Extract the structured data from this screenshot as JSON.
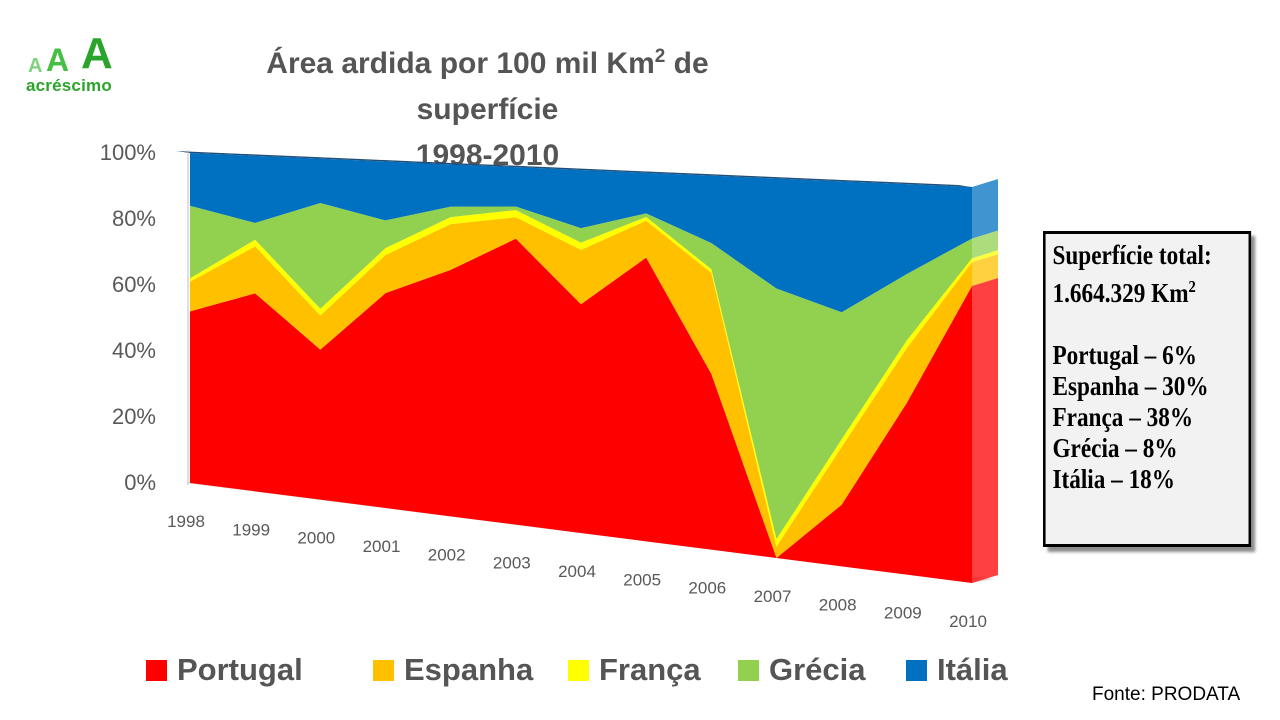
{
  "logo": {
    "letter": "A",
    "wordmark": "acréscimo"
  },
  "title": {
    "line1_prefix": "Área ardida por 100 mil Km",
    "line1_superscript": "2",
    "line1_suffix": " de superfície",
    "line2": "1998-2010"
  },
  "chart_data": {
    "type": "area",
    "stacked": "percent",
    "title": "Área ardida por 100 mil Km2 de superfície 1998-2010",
    "categories": [
      "1998",
      "1999",
      "2000",
      "2001",
      "2002",
      "2003",
      "2004",
      "2005",
      "2006",
      "2007",
      "2008",
      "2009",
      "2010"
    ],
    "y_ticks": [
      "0%",
      "20%",
      "40%",
      "60%",
      "80%",
      "100%"
    ],
    "ylim": [
      0,
      100
    ],
    "series": [
      {
        "name": "Portugal",
        "color": "#ff0000",
        "values": [
          52,
          59,
          44,
          62,
          70,
          80,
          63,
          77,
          47,
          0,
          16,
          44,
          75
        ]
      },
      {
        "name": "Espanha",
        "color": "#ffc000",
        "values": [
          9,
          14,
          10,
          11,
          13,
          6,
          15,
          10,
          27,
          3,
          15,
          14,
          6
        ]
      },
      {
        "name": "França",
        "color": "#ffff00",
        "values": [
          1,
          2,
          2,
          2,
          2,
          2,
          2,
          1,
          1,
          2,
          2,
          2,
          1
        ]
      },
      {
        "name": "Grécia",
        "color": "#92d050",
        "values": [
          22,
          5,
          31,
          8,
          3,
          1,
          4,
          1,
          7,
          66,
          33,
          17,
          5
        ]
      },
      {
        "name": "Itália",
        "color": "#0070c0",
        "values": [
          16,
          20,
          13,
          17,
          12,
          11,
          16,
          11,
          18,
          29,
          34,
          23,
          13
        ]
      }
    ]
  },
  "infobox": {
    "line1": "Superfície total:",
    "line2_value": "1.664.329 Km",
    "line2_superscript": "2",
    "items": [
      "Portugal – 6%",
      "Espanha – 30%",
      "França – 38%",
      "Grécia – 8%",
      "Itália – 18%"
    ]
  },
  "source": "Fonte: PRODATA"
}
